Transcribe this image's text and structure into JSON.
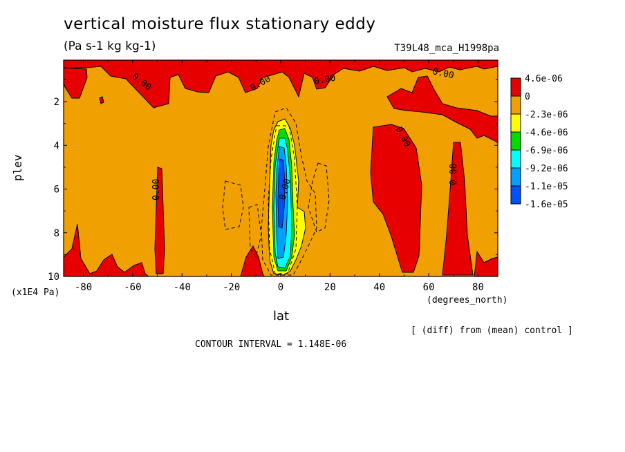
{
  "chart_data": {
    "type": "heatmap",
    "title": "vertical moisture flux stationary eddy",
    "units_line": "(Pa s-1 kg kg-1)",
    "run_name": "T39L48_mca_H1998pa",
    "xlabel": "lat",
    "x_units": "(degrees_north)",
    "ylabel": "plev",
    "y_units": "(x1E4 Pa)",
    "xlim": [
      -88,
      88
    ],
    "ylim": [
      10,
      0.1
    ],
    "x_ticks": [
      -80,
      -60,
      -40,
      -20,
      0,
      20,
      40,
      60,
      80
    ],
    "y_ticks": [
      2,
      4,
      6,
      8,
      10
    ],
    "contour_labels": [
      "0.00",
      "0.00",
      "0.00",
      "0.00",
      "0.00",
      "0.00",
      "0.00",
      "0.00"
    ],
    "colorbar": {
      "labels": [
        "4.6e-06",
        "0",
        "-2.3e-06",
        "-4.6e-06",
        "-6.9e-06",
        "-9.2e-06",
        "-1.1e-05",
        "-1.6e-05"
      ],
      "colors": [
        "#e60000",
        "#f0a000",
        "#ffff00",
        "#00dc00",
        "#00ffff",
        "#00a0ff",
        "#0050ff"
      ]
    },
    "background_color": "#f0a000",
    "footer_note": "[ (diff) from (mean) control ]",
    "contour_interval": "CONTOUR INTERVAL = 1.148E-06"
  }
}
